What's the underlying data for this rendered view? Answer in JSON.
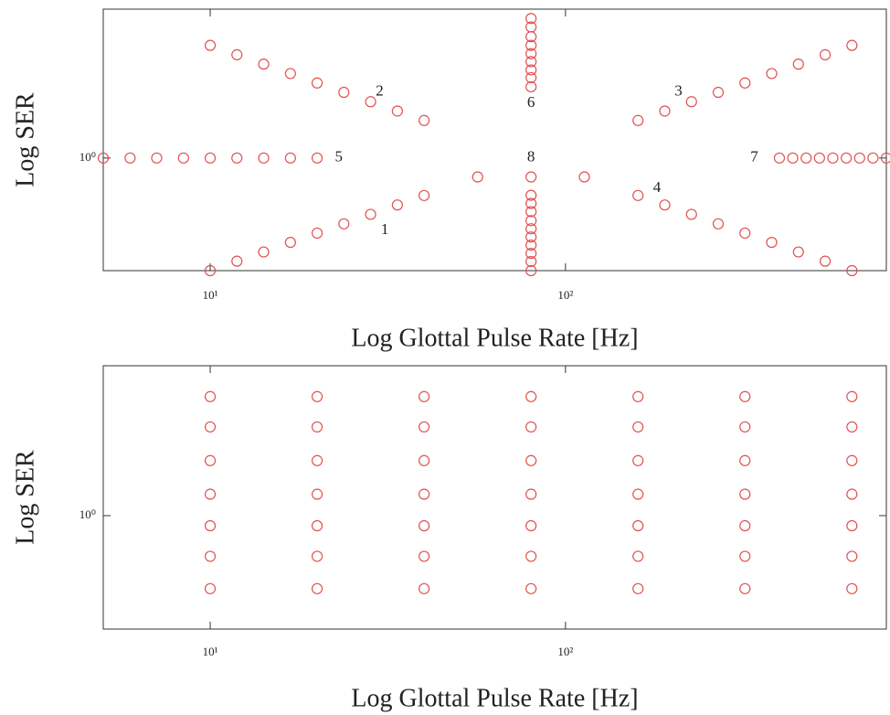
{
  "chart_data": [
    {
      "type": "scatter",
      "xlabel": "Log Glottal Pulse Rate [Hz]",
      "ylabel": "Log SER",
      "xscale": "log",
      "yscale": "log",
      "xlim": [
        5,
        800
      ],
      "ylim": [
        0.5,
        2.5
      ],
      "xticks": [
        {
          "value": 10,
          "label": "10¹"
        },
        {
          "value": 100,
          "label": "10²"
        }
      ],
      "yticks": [
        {
          "value": 1,
          "label": "10⁰"
        }
      ],
      "series": [
        {
          "color": "#e05050",
          "x": [
            10,
            11.89,
            14.14,
            16.82,
            20,
            23.78,
            28.28,
            33.64,
            40
          ],
          "y": [
            0.5,
            0.53,
            0.561,
            0.595,
            0.63,
            0.667,
            0.707,
            0.749,
            0.794
          ]
        },
        {
          "color": "#e05050",
          "x": [
            10,
            11.89,
            14.14,
            16.82,
            20,
            23.78,
            28.28,
            33.64,
            40
          ],
          "y": [
            2,
            1.888,
            1.782,
            1.682,
            1.587,
            1.498,
            1.414,
            1.335,
            1.26
          ]
        },
        {
          "color": "#e05050",
          "x": [
            160,
            190.3,
            226.3,
            269.1,
            320,
            380.5,
            452.5,
            538.2,
            640
          ],
          "y": [
            1.26,
            1.335,
            1.414,
            1.498,
            1.587,
            1.682,
            1.782,
            1.888,
            2
          ]
        },
        {
          "color": "#e05050",
          "x": [
            160,
            190.3,
            226.3,
            269.1,
            320,
            380.5,
            452.5,
            538.2,
            640
          ],
          "y": [
            0.794,
            0.749,
            0.707,
            0.667,
            0.63,
            0.595,
            0.561,
            0.53,
            0.5
          ]
        },
        {
          "color": "#e05050",
          "x": [
            5,
            5.95,
            7.07,
            8.41,
            10,
            11.89,
            14.14,
            16.82,
            20
          ],
          "y": [
            1,
            1,
            1,
            1,
            1,
            1,
            1,
            1,
            1
          ]
        },
        {
          "color": "#e05050",
          "x": [
            80,
            80,
            80,
            80,
            80,
            80,
            80,
            80,
            80
          ],
          "y": [
            2.36,
            2.24,
            2.11,
            2.0,
            1.9,
            1.81,
            1.72,
            1.64,
            1.55
          ]
        },
        {
          "color": "#e05050",
          "x": [
            400,
            436.2,
            475.7,
            518.7,
            565.7,
            616.9,
            672.7,
            733.6,
            800
          ],
          "y": [
            1,
            1,
            1,
            1,
            1,
            1,
            1,
            1,
            1
          ]
        },
        {
          "color": "#e05050",
          "x": [
            56.6,
            80,
            113,
            80,
            80,
            80,
            80,
            80,
            80,
            80,
            80,
            80,
            80
          ],
          "y": [
            0.89,
            0.89,
            0.89,
            0.795,
            0.756,
            0.719,
            0.68,
            0.647,
            0.615,
            0.585,
            0.556,
            0.529,
            0.5
          ]
        }
      ],
      "annotations": [
        {
          "text": "1",
          "x": 31,
          "y": 0.64
        },
        {
          "text": "2",
          "x": 30,
          "y": 1.5
        },
        {
          "text": "3",
          "x": 208,
          "y": 1.5
        },
        {
          "text": "4",
          "x": 181,
          "y": 0.83
        },
        {
          "text": "5",
          "x": 23,
          "y": 1
        },
        {
          "text": "6",
          "x": 80,
          "y": 1.4
        },
        {
          "text": "7",
          "x": 340,
          "y": 1
        },
        {
          "text": "8",
          "x": 80,
          "y": 1
        }
      ]
    },
    {
      "type": "scatter",
      "xlabel": "Log Glottal Pulse Rate [Hz]",
      "ylabel": "Log SER",
      "xscale": "log",
      "yscale": "log",
      "xlim": [
        5,
        800
      ],
      "ylim": [
        0.5,
        2.5
      ],
      "xticks": [
        {
          "value": 10,
          "label": "10¹"
        },
        {
          "value": 100,
          "label": "10²"
        }
      ],
      "yticks": [
        {
          "value": 1,
          "label": "10⁰"
        }
      ],
      "series": [
        {
          "color": "#e05050",
          "x": [
            10,
            10,
            10,
            10,
            10,
            10,
            10,
            20,
            20,
            20,
            20,
            20,
            20,
            20,
            40,
            40,
            40,
            40,
            40,
            40,
            40,
            80,
            80,
            80,
            80,
            80,
            80,
            80,
            160,
            160,
            160,
            160,
            160,
            160,
            160,
            320,
            320,
            320,
            320,
            320,
            320,
            320,
            640,
            640,
            640,
            640,
            640,
            640,
            640
          ],
          "y": [
            2.07,
            1.72,
            1.4,
            1.14,
            0.94,
            0.78,
            0.64,
            2.07,
            1.72,
            1.4,
            1.14,
            0.94,
            0.78,
            0.64,
            2.07,
            1.72,
            1.4,
            1.14,
            0.94,
            0.78,
            0.64,
            2.07,
            1.72,
            1.4,
            1.14,
            0.94,
            0.78,
            0.64,
            2.07,
            1.72,
            1.4,
            1.14,
            0.94,
            0.78,
            0.64,
            2.07,
            1.72,
            1.4,
            1.14,
            0.94,
            0.78,
            0.64,
            2.07,
            1.72,
            1.4,
            1.14,
            0.94,
            0.78,
            0.64
          ]
        }
      ]
    }
  ]
}
